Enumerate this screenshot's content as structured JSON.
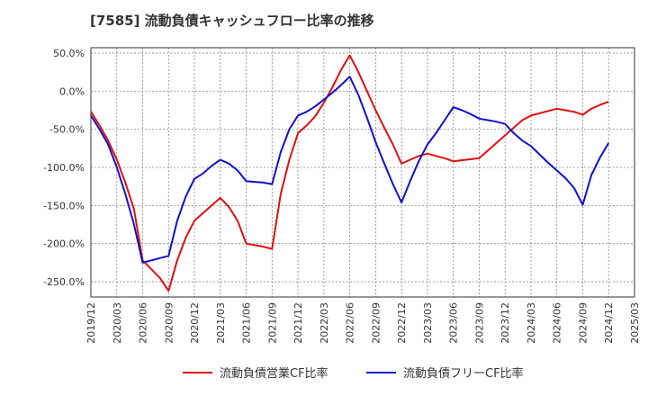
{
  "chart_data": {
    "type": "line",
    "title": "[7585]  流動負債キャッシュフロー比率の推移",
    "xlabel": "",
    "ylabel": "",
    "x": [
      "2019/12",
      "2020/03",
      "2020/06",
      "2020/09",
      "2020/12",
      "2021/03",
      "2021/06",
      "2021/09",
      "2021/12",
      "2022/03",
      "2022/06",
      "2022/09",
      "2022/12",
      "2023/03",
      "2023/06",
      "2023/09",
      "2023/12",
      "2024/03",
      "2024/06",
      "2024/09",
      "2024/12",
      "2025/03"
    ],
    "x_ticks": [
      "2019/12",
      "2020/03",
      "2020/06",
      "2020/09",
      "2020/12",
      "2021/03",
      "2021/06",
      "2021/09",
      "2021/12",
      "2022/03",
      "2022/06",
      "2022/09",
      "2022/12",
      "2023/03",
      "2023/06",
      "2023/09",
      "2023/12",
      "2024/03",
      "2024/06",
      "2024/09",
      "2024/12",
      "2025/03"
    ],
    "y_ticks": [
      50,
      0,
      -50,
      -100,
      -150,
      -200,
      -250
    ],
    "y_tick_labels": [
      "50.0%",
      "0.0%",
      "-50.0%",
      "-100.0%",
      "-150.0%",
      "-200.0%",
      "-250.0%"
    ],
    "ylim": [
      -270,
      57
    ],
    "grid": true,
    "legend_position": "bottom",
    "series": [
      {
        "name": "流動負債営業CF比率",
        "color": "#dd1111",
        "points": [
          [
            "2019/12",
            -27
          ],
          [
            "2020/01",
            -45
          ],
          [
            "2020/02",
            -65
          ],
          [
            "2020/03",
            -90
          ],
          [
            "2020/04",
            -120
          ],
          [
            "2020/05",
            -155
          ],
          [
            "2020/06",
            -222
          ],
          [
            "2020/08",
            -245
          ],
          [
            "2020/09",
            -262
          ],
          [
            "2020/10",
            -222
          ],
          [
            "2020/11",
            -192
          ],
          [
            "2020/12",
            -170
          ],
          [
            "2021/01",
            -160
          ],
          [
            "2021/02",
            -150
          ],
          [
            "2021/03",
            -140
          ],
          [
            "2021/04",
            -152
          ],
          [
            "2021/05",
            -170
          ],
          [
            "2021/06",
            -200
          ],
          [
            "2021/07",
            -202
          ],
          [
            "2021/08",
            -204
          ],
          [
            "2021/09",
            -207
          ],
          [
            "2021/10",
            -135
          ],
          [
            "2021/11",
            -90
          ],
          [
            "2021/12",
            -55
          ],
          [
            "2022/01",
            -45
          ],
          [
            "2022/02",
            -33
          ],
          [
            "2022/03",
            -15
          ],
          [
            "2022/04",
            5
          ],
          [
            "2022/05",
            28
          ],
          [
            "2022/06",
            47
          ],
          [
            "2022/07",
            25
          ],
          [
            "2022/08",
            0
          ],
          [
            "2022/09",
            -25
          ],
          [
            "2022/10",
            -48
          ],
          [
            "2022/11",
            -70
          ],
          [
            "2022/12",
            -95
          ],
          [
            "2023/01",
            -90
          ],
          [
            "2023/02",
            -85
          ],
          [
            "2023/03",
            -82
          ],
          [
            "2023/04",
            -85
          ],
          [
            "2023/05",
            -88
          ],
          [
            "2023/06",
            -92
          ],
          [
            "2023/09",
            -88
          ],
          [
            "2023/10",
            -78
          ],
          [
            "2023/11",
            -68
          ],
          [
            "2023/12",
            -58
          ],
          [
            "2024/01",
            -48
          ],
          [
            "2024/02",
            -38
          ],
          [
            "2024/03",
            -32
          ],
          [
            "2024/04",
            -29
          ],
          [
            "2024/05",
            -26
          ],
          [
            "2024/06",
            -23
          ],
          [
            "2024/07",
            -25
          ],
          [
            "2024/08",
            -27
          ],
          [
            "2024/09",
            -31
          ],
          [
            "2024/10",
            -23
          ],
          [
            "2024/11",
            -18
          ],
          [
            "2024/12",
            -14
          ]
        ]
      },
      {
        "name": "流動負債フリーCF比率",
        "color": "#1111cc",
        "points": [
          [
            "2019/12",
            -32
          ],
          [
            "2020/01",
            -50
          ],
          [
            "2020/02",
            -70
          ],
          [
            "2020/03",
            -100
          ],
          [
            "2020/04",
            -135
          ],
          [
            "2020/05",
            -175
          ],
          [
            "2020/06",
            -225
          ],
          [
            "2020/07",
            -222
          ],
          [
            "2020/08",
            -219
          ],
          [
            "2020/09",
            -216
          ],
          [
            "2020/10",
            -170
          ],
          [
            "2020/11",
            -138
          ],
          [
            "2020/12",
            -115
          ],
          [
            "2021/01",
            -108
          ],
          [
            "2021/02",
            -98
          ],
          [
            "2021/03",
            -90
          ],
          [
            "2021/04",
            -95
          ],
          [
            "2021/05",
            -104
          ],
          [
            "2021/06",
            -118
          ],
          [
            "2021/07",
            -119
          ],
          [
            "2021/08",
            -120
          ],
          [
            "2021/09",
            -122
          ],
          [
            "2021/10",
            -80
          ],
          [
            "2021/11",
            -50
          ],
          [
            "2021/12",
            -32
          ],
          [
            "2022/01",
            -27
          ],
          [
            "2022/02",
            -20
          ],
          [
            "2022/03",
            -11
          ],
          [
            "2022/04",
            -2
          ],
          [
            "2022/05",
            8
          ],
          [
            "2022/06",
            19
          ],
          [
            "2022/07",
            -5
          ],
          [
            "2022/08",
            -35
          ],
          [
            "2022/09",
            -67
          ],
          [
            "2022/10",
            -95
          ],
          [
            "2022/11",
            -122
          ],
          [
            "2022/12",
            -146
          ],
          [
            "2023/01",
            -118
          ],
          [
            "2023/02",
            -92
          ],
          [
            "2023/03",
            -70
          ],
          [
            "2023/04",
            -55
          ],
          [
            "2023/05",
            -38
          ],
          [
            "2023/06",
            -21
          ],
          [
            "2023/07",
            -25
          ],
          [
            "2023/08",
            -30
          ],
          [
            "2023/09",
            -36
          ],
          [
            "2023/10",
            -38
          ],
          [
            "2023/11",
            -40
          ],
          [
            "2023/12",
            -43
          ],
          [
            "2024/01",
            -55
          ],
          [
            "2024/02",
            -65
          ],
          [
            "2024/03",
            -72
          ],
          [
            "2024/04",
            -83
          ],
          [
            "2024/05",
            -94
          ],
          [
            "2024/06",
            -104
          ],
          [
            "2024/07",
            -114
          ],
          [
            "2024/08",
            -127
          ],
          [
            "2024/09",
            -149
          ],
          [
            "2024/10",
            -110
          ],
          [
            "2024/11",
            -87
          ],
          [
            "2024/12",
            -68
          ]
        ]
      }
    ]
  }
}
